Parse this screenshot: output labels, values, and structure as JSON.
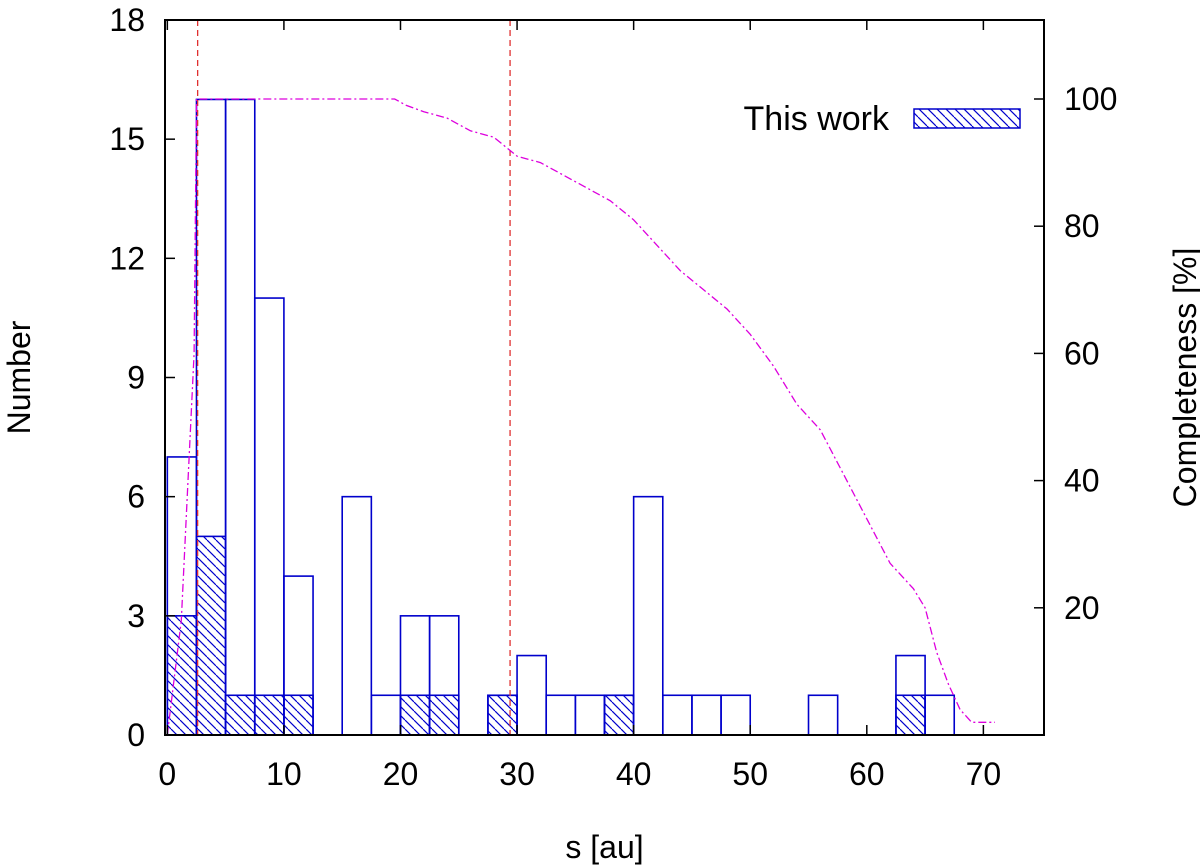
{
  "chart_data": {
    "type": "bar",
    "xlabel": "s [au]",
    "ylabel": "Number",
    "y2label": "Completeness [%]",
    "xlim": [
      -0.2,
      75.2
    ],
    "ylim": [
      0,
      18
    ],
    "y2lim": [
      0,
      100
    ],
    "xticks": [
      0,
      10,
      20,
      30,
      40,
      50,
      60,
      70
    ],
    "yticks": [
      0,
      3,
      6,
      9,
      12,
      15,
      18
    ],
    "y2ticks": [
      20,
      40,
      60,
      80,
      100
    ],
    "bin_width": 2.5,
    "grid": false,
    "legend_position": "top-right",
    "colors": {
      "bars": "#0000cc",
      "completeness": "#dd00dd",
      "reference_lines": "#e03030",
      "axes": "#000000"
    },
    "series": [
      {
        "style": "open",
        "bins": [
          {
            "x0": 0.0,
            "value": 7
          },
          {
            "x0": 2.5,
            "value": 16
          },
          {
            "x0": 5.0,
            "value": 16
          },
          {
            "x0": 7.5,
            "value": 11
          },
          {
            "x0": 10.0,
            "value": 4
          },
          {
            "x0": 15.0,
            "value": 6
          },
          {
            "x0": 17.5,
            "value": 1
          },
          {
            "x0": 20.0,
            "value": 3
          },
          {
            "x0": 22.5,
            "value": 3
          },
          {
            "x0": 27.5,
            "value": 1
          },
          {
            "x0": 30.0,
            "value": 2
          },
          {
            "x0": 32.5,
            "value": 1
          },
          {
            "x0": 35.0,
            "value": 1
          },
          {
            "x0": 37.5,
            "value": 1
          },
          {
            "x0": 40.0,
            "value": 6
          },
          {
            "x0": 42.5,
            "value": 1
          },
          {
            "x0": 45.0,
            "value": 1
          },
          {
            "x0": 47.5,
            "value": 1
          },
          {
            "x0": 55.0,
            "value": 1
          },
          {
            "x0": 62.5,
            "value": 2
          },
          {
            "x0": 65.0,
            "value": 1
          }
        ]
      },
      {
        "name": "This work",
        "style": "hatched",
        "bins": [
          {
            "x0": 0.0,
            "value": 3
          },
          {
            "x0": 2.5,
            "value": 5
          },
          {
            "x0": 5.0,
            "value": 1
          },
          {
            "x0": 7.5,
            "value": 1
          },
          {
            "x0": 10.0,
            "value": 1
          },
          {
            "x0": 20.0,
            "value": 1
          },
          {
            "x0": 22.5,
            "value": 1
          },
          {
            "x0": 27.5,
            "value": 1
          },
          {
            "x0": 37.5,
            "value": 1
          },
          {
            "x0": 62.5,
            "value": 1
          }
        ]
      }
    ],
    "completeness": {
      "axis": "right",
      "points": [
        [
          0,
          0
        ],
        [
          1.2,
          18
        ],
        [
          2.3,
          60
        ],
        [
          2.5,
          100
        ],
        [
          17,
          100
        ],
        [
          19.5,
          100
        ],
        [
          20.5,
          99
        ],
        [
          22,
          98
        ],
        [
          24,
          97
        ],
        [
          26,
          95
        ],
        [
          28,
          94
        ],
        [
          30,
          91
        ],
        [
          32,
          90
        ],
        [
          34,
          88
        ],
        [
          36,
          86
        ],
        [
          38,
          84
        ],
        [
          40,
          81
        ],
        [
          42,
          77
        ],
        [
          44,
          73
        ],
        [
          46,
          70
        ],
        [
          48,
          67
        ],
        [
          50,
          63
        ],
        [
          52,
          58
        ],
        [
          54,
          52
        ],
        [
          56,
          48
        ],
        [
          58,
          41
        ],
        [
          60,
          34
        ],
        [
          62,
          27
        ],
        [
          64,
          23
        ],
        [
          65,
          20
        ],
        [
          66,
          13
        ],
        [
          67,
          8
        ],
        [
          68,
          4
        ],
        [
          69,
          2
        ],
        [
          71,
          2
        ]
      ]
    },
    "reference_lines": [
      2.6,
      29.4
    ]
  }
}
